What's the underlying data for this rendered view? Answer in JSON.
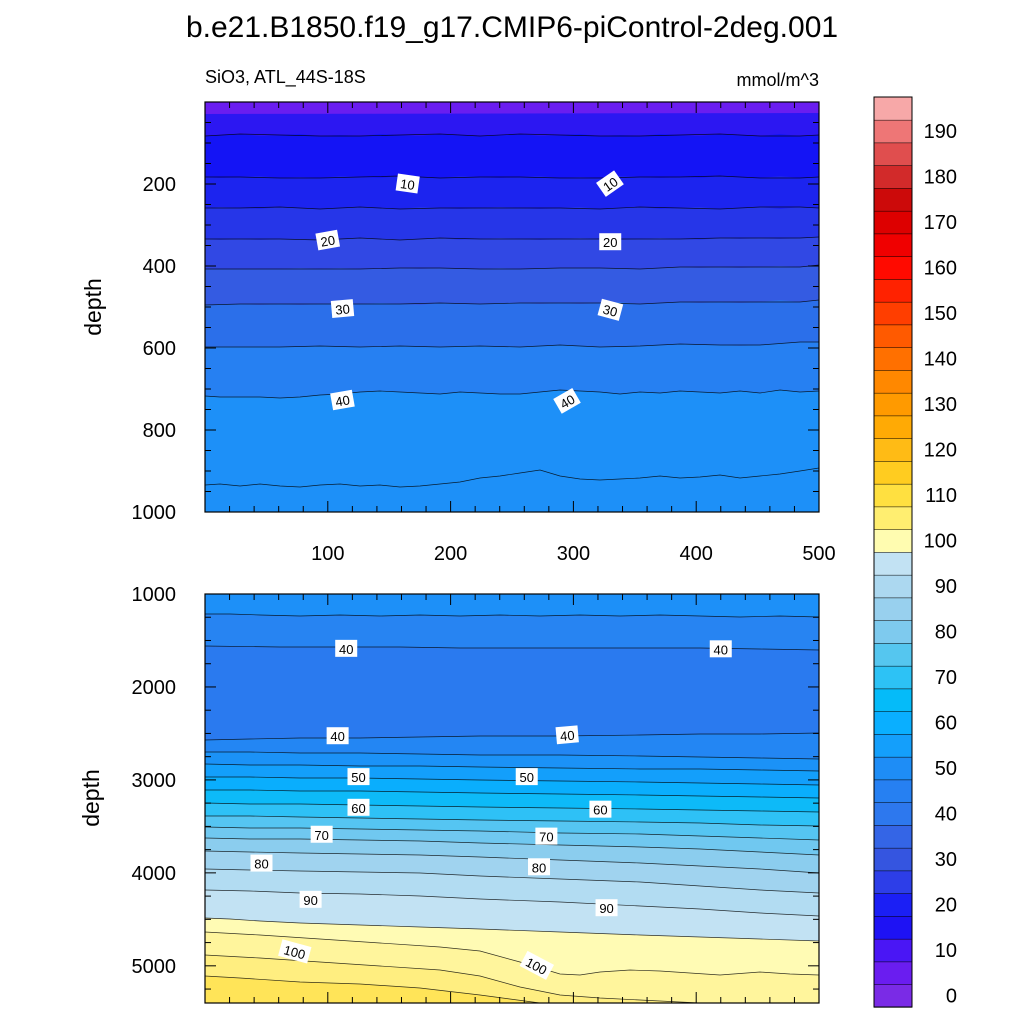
{
  "title": "b.e21.B1850.f19_g17.CMIP6-piControl-2deg.001",
  "chart_data": {
    "type": "contour",
    "variable": "SiO3",
    "region": "ATL_44S-18S",
    "subtitle_left": "SiO3, ATL_44S-18S",
    "units": "mmol/m^3",
    "xlabel": "",
    "xticks": [
      "100",
      "200",
      "300",
      "400",
      "500"
    ],
    "xlim": [
      0,
      500
    ],
    "panels": [
      {
        "name": "upper",
        "ylabel": "depth",
        "ylim": [
          0,
          1000
        ],
        "yticks": [
          "200",
          "400",
          "600",
          "800",
          "1000"
        ],
        "contour_labels": [
          {
            "text": "10",
            "x": 165,
            "y": 200,
            "angle": 8
          },
          {
            "text": "10",
            "x": 330,
            "y": 200,
            "angle": -35
          },
          {
            "text": "20",
            "x": 100,
            "y": 338,
            "angle": -10
          },
          {
            "text": "20",
            "x": 330,
            "y": 342,
            "angle": 0
          },
          {
            "text": "30",
            "x": 112,
            "y": 505,
            "angle": -5
          },
          {
            "text": "30",
            "x": 330,
            "y": 508,
            "angle": 15
          },
          {
            "text": "40",
            "x": 112,
            "y": 728,
            "angle": -10
          },
          {
            "text": "40",
            "x": 295,
            "y": 730,
            "angle": -30
          }
        ]
      },
      {
        "name": "lower",
        "ylabel": "depth",
        "ylim": [
          1000,
          5400
        ],
        "yticks": [
          "1000",
          "2000",
          "3000",
          "4000",
          "5000"
        ],
        "contour_labels": [
          {
            "text": "40",
            "x": 115,
            "y": 1590,
            "angle": 0
          },
          {
            "text": "40",
            "x": 420,
            "y": 1595,
            "angle": 0
          },
          {
            "text": "40",
            "x": 108,
            "y": 2530,
            "angle": 0
          },
          {
            "text": "40",
            "x": 295,
            "y": 2520,
            "angle": -5
          },
          {
            "text": "50",
            "x": 125,
            "y": 2970,
            "angle": 0
          },
          {
            "text": "50",
            "x": 262,
            "y": 2970,
            "angle": 0
          },
          {
            "text": "60",
            "x": 125,
            "y": 3300,
            "angle": 0
          },
          {
            "text": "60",
            "x": 322,
            "y": 3320,
            "angle": 0
          },
          {
            "text": "70",
            "x": 95,
            "y": 3590,
            "angle": 0
          },
          {
            "text": "70",
            "x": 278,
            "y": 3610,
            "angle": 0
          },
          {
            "text": "80",
            "x": 46,
            "y": 3900,
            "angle": 0
          },
          {
            "text": "80",
            "x": 272,
            "y": 3940,
            "angle": 0
          },
          {
            "text": "90",
            "x": 86,
            "y": 4290,
            "angle": 0
          },
          {
            "text": "90",
            "x": 327,
            "y": 4380,
            "angle": 0
          },
          {
            "text": "100",
            "x": 73,
            "y": 4850,
            "angle": 15
          },
          {
            "text": "100",
            "x": 270,
            "y": 5000,
            "angle": 28
          }
        ]
      }
    ],
    "colorbar": {
      "levels": [
        0,
        5,
        10,
        15,
        20,
        25,
        30,
        35,
        40,
        45,
        50,
        55,
        60,
        65,
        70,
        75,
        80,
        85,
        90,
        95,
        100,
        105,
        110,
        115,
        120,
        125,
        130,
        135,
        140,
        145,
        150,
        155,
        160,
        165,
        170,
        175,
        180,
        185,
        190,
        195
      ],
      "labels": [
        "0",
        "10",
        "20",
        "30",
        "40",
        "50",
        "60",
        "70",
        "80",
        "90",
        "100",
        "110",
        "120",
        "130",
        "140",
        "150",
        "160",
        "170",
        "180",
        "190"
      ],
      "colors": [
        "#7a2be6",
        "#6a1df0",
        "#4a16f5",
        "#1e12f4",
        "#1b1ff5",
        "#2d3ee8",
        "#3555e0",
        "#3465e6",
        "#2d78ee",
        "#2680f2",
        "#1e8df6",
        "#149ffb",
        "#0aafff",
        "#05bbf9",
        "#2dc2f5",
        "#55c6ef",
        "#7ecaee",
        "#98d0ee",
        "#acd8f0",
        "#c2e2f3",
        "#fffcb0",
        "#ffee70",
        "#ffe040",
        "#ffcc20",
        "#ffbb15",
        "#ffaa05",
        "#ff9a00",
        "#ff8800",
        "#ff7000",
        "#ff5a00",
        "#ff3e00",
        "#ff2200",
        "#ff0a00",
        "#f00000",
        "#dd0000",
        "#cc0a0a",
        "#d22a2a",
        "#e04e4e",
        "#ee7676",
        "#f7a8a8"
      ]
    }
  }
}
